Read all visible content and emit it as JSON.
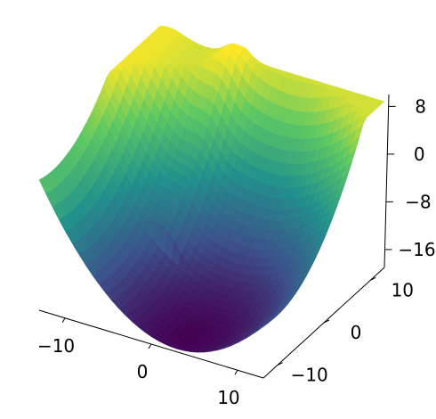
{
  "chart_data": {
    "type": "surface3d",
    "title": "",
    "colormap": "viridis",
    "colormap_stops": [
      "#440154",
      "#3b528b",
      "#21918c",
      "#5ec962",
      "#fde725"
    ],
    "axes": {
      "x": {
        "ticks": [
          -10,
          0,
          10
        ],
        "tick_labels": [
          "−10",
          "0",
          "10"
        ],
        "range": [
          -13,
          13
        ]
      },
      "y": {
        "ticks": [
          -10,
          0,
          10
        ],
        "tick_labels": [
          "−10",
          "0",
          "10"
        ],
        "range": [
          -13,
          13
        ]
      },
      "z": {
        "ticks": [
          -16,
          -8,
          0,
          8
        ],
        "tick_labels": [
          "−16",
          "−8",
          "0",
          "8"
        ],
        "range": [
          -19,
          10
        ]
      }
    },
    "surface": {
      "shape": "valley with deep minimum near front-center corner, raised ridges along far edges",
      "z_min": -19,
      "z_max": 10
    },
    "grid": false
  }
}
